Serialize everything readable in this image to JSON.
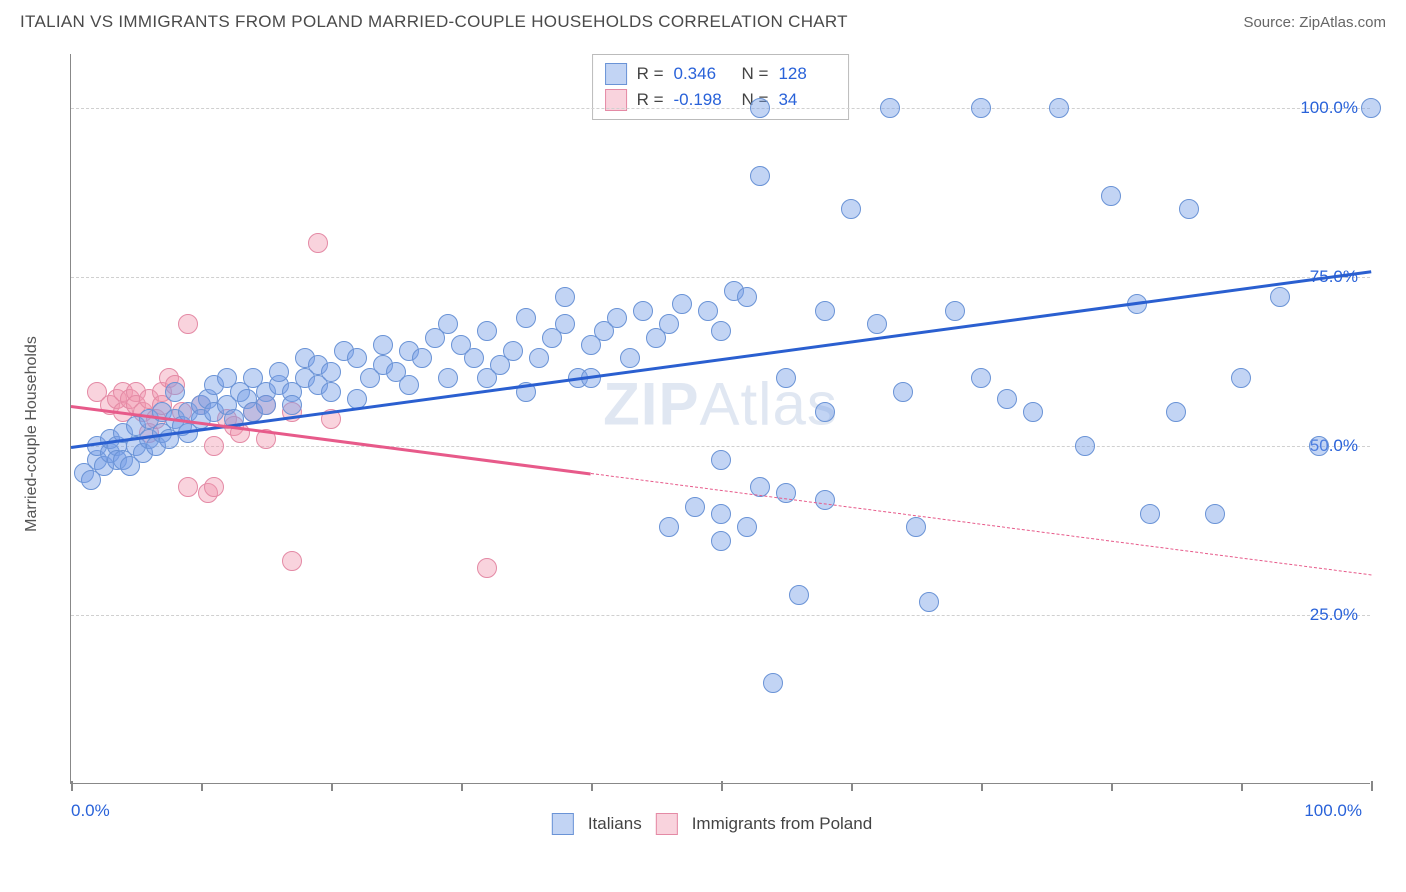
{
  "header": {
    "title": "ITALIAN VS IMMIGRANTS FROM POLAND MARRIED-COUPLE HOUSEHOLDS CORRELATION CHART",
    "source": "Source: ZipAtlas.com"
  },
  "chart": {
    "type": "scatter",
    "y_axis_label": "Married-couple Households",
    "watermark": {
      "bold": "ZIP",
      "rest": "Atlas"
    },
    "x_range": [
      0,
      100
    ],
    "y_range": [
      0,
      108
    ],
    "y_ticks": [
      {
        "v": 25,
        "label": "25.0%"
      },
      {
        "v": 50,
        "label": "50.0%"
      },
      {
        "v": 75,
        "label": "75.0%"
      },
      {
        "v": 100,
        "label": "100.0%"
      }
    ],
    "x_ticks_major": [
      0,
      50,
      100
    ],
    "x_tick_labels": [
      {
        "v": 0,
        "label": "0.0%"
      },
      {
        "v": 100,
        "label": "100.0%"
      }
    ],
    "x_ticks_minor": [
      10,
      20,
      30,
      40,
      60,
      70,
      80,
      90
    ],
    "marker_radius": 10,
    "series": {
      "italians": {
        "label": "Italians",
        "color_fill": "rgba(120,160,230,0.45)",
        "color_stroke": "#6a93d6",
        "trend_color": "#2a5fd0",
        "R": "0.346",
        "N": "128",
        "trend": {
          "x1": 0,
          "y1": 50,
          "x2": 100,
          "y2": 76
        },
        "points": [
          [
            1,
            46
          ],
          [
            1.5,
            45
          ],
          [
            2,
            48
          ],
          [
            2,
            50
          ],
          [
            2.5,
            47
          ],
          [
            3,
            49
          ],
          [
            3,
            51
          ],
          [
            3.5,
            50
          ],
          [
            3.5,
            48
          ],
          [
            4,
            52
          ],
          [
            4,
            48
          ],
          [
            4.5,
            47
          ],
          [
            5,
            50
          ],
          [
            5,
            53
          ],
          [
            5.5,
            49
          ],
          [
            6,
            54
          ],
          [
            6,
            51
          ],
          [
            6.5,
            50
          ],
          [
            7,
            55
          ],
          [
            7,
            52
          ],
          [
            7.5,
            51
          ],
          [
            8,
            54
          ],
          [
            8,
            58
          ],
          [
            8.5,
            53
          ],
          [
            9,
            55
          ],
          [
            9,
            52
          ],
          [
            10,
            56
          ],
          [
            10,
            54
          ],
          [
            10.5,
            57
          ],
          [
            11,
            55
          ],
          [
            11,
            59
          ],
          [
            12,
            56
          ],
          [
            12,
            60
          ],
          [
            12.5,
            54
          ],
          [
            13,
            58
          ],
          [
            13.5,
            57
          ],
          [
            14,
            55
          ],
          [
            14,
            60
          ],
          [
            15,
            58
          ],
          [
            15,
            56
          ],
          [
            16,
            59
          ],
          [
            16,
            61
          ],
          [
            17,
            58
          ],
          [
            17,
            56
          ],
          [
            18,
            60
          ],
          [
            18,
            63
          ],
          [
            19,
            59
          ],
          [
            19,
            62
          ],
          [
            20,
            58
          ],
          [
            20,
            61
          ],
          [
            21,
            64
          ],
          [
            22,
            57
          ],
          [
            22,
            63
          ],
          [
            23,
            60
          ],
          [
            24,
            65
          ],
          [
            24,
            62
          ],
          [
            25,
            61
          ],
          [
            26,
            64
          ],
          [
            26,
            59
          ],
          [
            27,
            63
          ],
          [
            28,
            66
          ],
          [
            29,
            60
          ],
          [
            29,
            68
          ],
          [
            30,
            65
          ],
          [
            31,
            63
          ],
          [
            32,
            60
          ],
          [
            32,
            67
          ],
          [
            33,
            62
          ],
          [
            34,
            64
          ],
          [
            35,
            69
          ],
          [
            36,
            63
          ],
          [
            37,
            66
          ],
          [
            38,
            72
          ],
          [
            38,
            68
          ],
          [
            39,
            60
          ],
          [
            40,
            65
          ],
          [
            41,
            67
          ],
          [
            42,
            69
          ],
          [
            43,
            63
          ],
          [
            44,
            70
          ],
          [
            45,
            66
          ],
          [
            46,
            68
          ],
          [
            47,
            71
          ],
          [
            49,
            70
          ],
          [
            50,
            67
          ],
          [
            50,
            36
          ],
          [
            50,
            40
          ],
          [
            51,
            73
          ],
          [
            52,
            38
          ],
          [
            53,
            90
          ],
          [
            53,
            100
          ],
          [
            54,
            15
          ],
          [
            55,
            60
          ],
          [
            56,
            28
          ],
          [
            58,
            42
          ],
          [
            58,
            70
          ],
          [
            60,
            85
          ],
          [
            62,
            68
          ],
          [
            63,
            100
          ],
          [
            64,
            58
          ],
          [
            65,
            38
          ],
          [
            66,
            27
          ],
          [
            68,
            70
          ],
          [
            70,
            100
          ],
          [
            70,
            60
          ],
          [
            72,
            57
          ],
          [
            74,
            55
          ],
          [
            76,
            100
          ],
          [
            78,
            50
          ],
          [
            80,
            87
          ],
          [
            82,
            71
          ],
          [
            83,
            40
          ],
          [
            85,
            55
          ],
          [
            86,
            85
          ],
          [
            88,
            40
          ],
          [
            90,
            60
          ],
          [
            93,
            72
          ],
          [
            96,
            50
          ],
          [
            100,
            100
          ],
          [
            48,
            41
          ],
          [
            52,
            72
          ],
          [
            55,
            43
          ],
          [
            58,
            55
          ],
          [
            50,
            48
          ],
          [
            46,
            38
          ],
          [
            53,
            44
          ],
          [
            35,
            58
          ],
          [
            40,
            60
          ]
        ]
      },
      "poland": {
        "label": "Immigrants from Poland",
        "color_fill": "rgba(240,150,175,0.42)",
        "color_stroke": "#e48aa5",
        "trend_color": "#e75a8a",
        "R": "-0.198",
        "N": "34",
        "trend_solid": {
          "x1": 0,
          "y1": 56,
          "x2": 40,
          "y2": 46
        },
        "trend_dashed": {
          "x1": 40,
          "y1": 46,
          "x2": 100,
          "y2": 31
        },
        "points": [
          [
            2,
            58
          ],
          [
            3,
            56
          ],
          [
            3.5,
            57
          ],
          [
            4,
            55
          ],
          [
            4,
            58
          ],
          [
            4.5,
            57
          ],
          [
            5,
            58
          ],
          [
            5,
            56
          ],
          [
            5.5,
            55
          ],
          [
            6,
            57
          ],
          [
            6,
            52
          ],
          [
            6.5,
            54
          ],
          [
            7,
            58
          ],
          [
            7,
            56
          ],
          [
            7.5,
            60
          ],
          [
            8,
            59
          ],
          [
            8.5,
            55
          ],
          [
            9,
            68
          ],
          [
            9,
            44
          ],
          [
            10,
            56
          ],
          [
            10.5,
            43
          ],
          [
            11,
            50
          ],
          [
            11,
            44
          ],
          [
            12,
            54
          ],
          [
            12.5,
            53
          ],
          [
            13,
            52
          ],
          [
            14,
            55
          ],
          [
            15,
            51
          ],
          [
            15,
            56
          ],
          [
            17,
            33
          ],
          [
            17,
            55
          ],
          [
            19,
            80
          ],
          [
            20,
            54
          ],
          [
            32,
            32
          ]
        ]
      }
    },
    "legend_top": [
      {
        "series": "italians",
        "r_label": "R =",
        "r_val": "0.346",
        "n_label": "N =",
        "n_val": "128"
      },
      {
        "series": "poland",
        "r_label": "R =",
        "r_val": "-0.198",
        "n_label": "N =",
        "n_val": "34"
      }
    ],
    "legend_bottom": [
      {
        "series": "italians"
      },
      {
        "series": "poland"
      }
    ]
  }
}
